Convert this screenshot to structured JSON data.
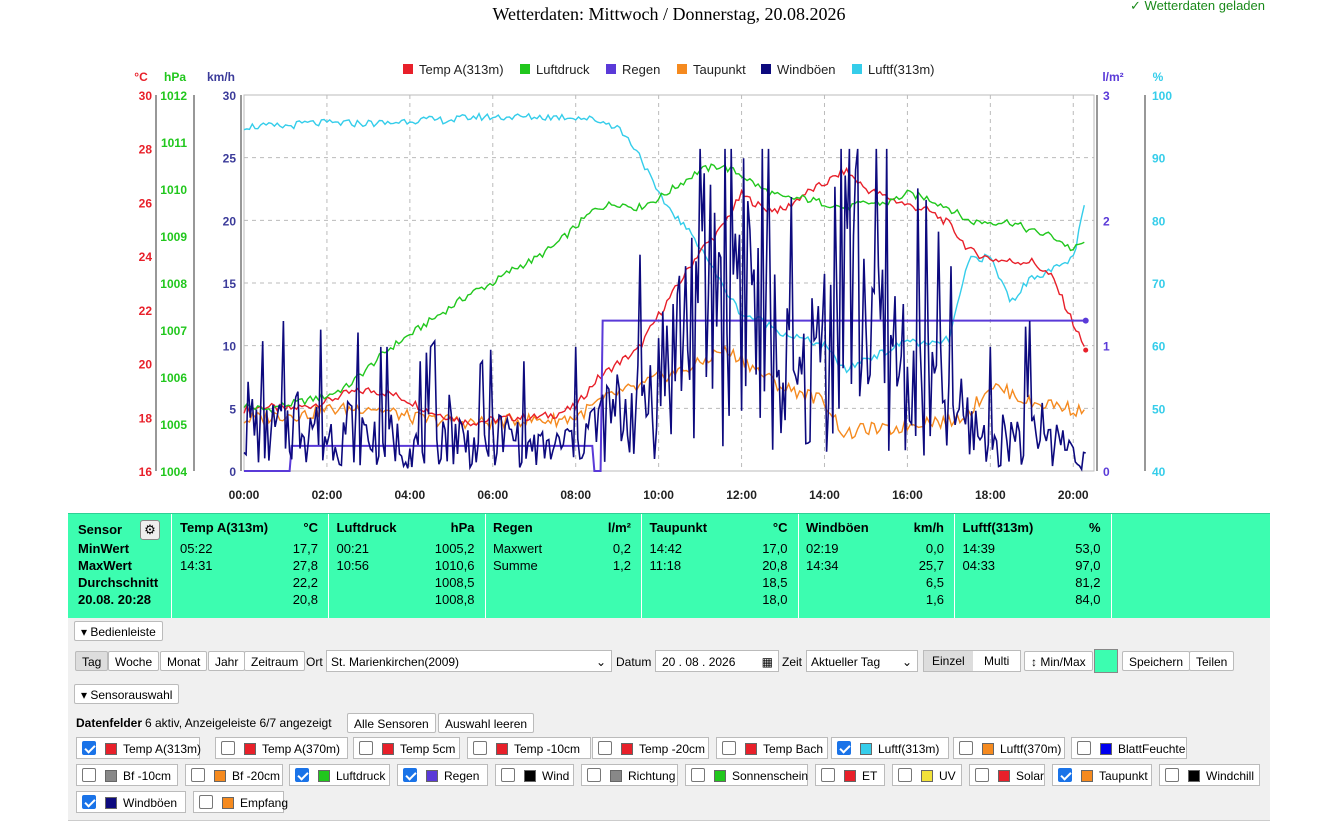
{
  "title": "Wetterdaten: Mittwoch / Donnerstag, 20.08.2026",
  "status": "✓ Wetterdaten geladen",
  "chart_data": {
    "type": "line",
    "legend": [
      "Temp A(313m)",
      "Luftdruck",
      "Regen",
      "Taupunkt",
      "Windböen",
      "Luftf(313m)"
    ],
    "legend_colors": [
      "#e8202a",
      "#21c71d",
      "#5a3ad8",
      "#f58a1f",
      "#0d0a7e",
      "#35cdea"
    ],
    "axes": {
      "temp": {
        "unit": "°C",
        "min": 16,
        "max": 30,
        "ticks": [
          "30",
          "28",
          "26",
          "24",
          "22",
          "20",
          "18",
          "16"
        ],
        "color": "#e8202a"
      },
      "pressure": {
        "unit": "hPa",
        "min": 1004,
        "max": 1012,
        "ticks": [
          "1012",
          "1011",
          "1010",
          "1009",
          "1008",
          "1007",
          "1006",
          "1005",
          "1004"
        ],
        "color": "#21c71d"
      },
      "wind": {
        "unit": "km/h",
        "min": 0,
        "max": 30,
        "ticks": [
          "30",
          "25",
          "20",
          "15",
          "10",
          "5",
          "0"
        ],
        "color": "#3b3b9a"
      },
      "rain": {
        "unit": "l/m²",
        "min": 0,
        "max": 3,
        "ticks": [
          "3",
          "2",
          "1",
          "0"
        ],
        "color": "#5a3ad8"
      },
      "humidity": {
        "unit": "%",
        "min": 40,
        "max": 100,
        "ticks": [
          "100",
          "90",
          "80",
          "70",
          "60",
          "50",
          "40"
        ],
        "color": "#35cdea"
      }
    },
    "x_ticks": [
      "00:00",
      "02:00",
      "04:00",
      "06:00",
      "08:00",
      "10:00",
      "12:00",
      "14:00",
      "16:00",
      "18:00",
      "20:00"
    ],
    "series": [
      {
        "name": "Temp A(313m)",
        "axis": "temp",
        "color": "#e8202a",
        "x": [
          0,
          0.5,
          1,
          1.5,
          2,
          2.5,
          3,
          3.5,
          4,
          4.5,
          5,
          5.37,
          6,
          6.5,
          7,
          7.5,
          8,
          8.5,
          9,
          9.5,
          10,
          10.5,
          11,
          11.5,
          12,
          12.5,
          13,
          13.5,
          14,
          14.5,
          15,
          15.5,
          16,
          16.5,
          17,
          17.5,
          18,
          18.5,
          19,
          19.5,
          20,
          20.3
        ],
        "y": [
          18.3,
          18.4,
          18.3,
          18.4,
          18.6,
          18.9,
          19.0,
          18.9,
          18.6,
          18.2,
          18.0,
          17.8,
          17.9,
          18.0,
          18.0,
          18.1,
          18.4,
          19.4,
          20.0,
          20.5,
          21.8,
          23.0,
          24.2,
          25.0,
          26.3,
          25.8,
          25.7,
          26.3,
          26.7,
          27.2,
          26.5,
          26.2,
          25.9,
          25.7,
          25.2,
          24.2,
          23.9,
          23.8,
          23.8,
          23.2,
          21.5,
          20.5
        ]
      },
      {
        "name": "Luftdruck",
        "axis": "pressure",
        "color": "#21c71d",
        "x": [
          0,
          0.5,
          1,
          1.5,
          2,
          2.5,
          3,
          3.5,
          4,
          4.5,
          5,
          5.5,
          6,
          6.5,
          7,
          7.5,
          8,
          8.5,
          9,
          9.5,
          10,
          10.5,
          11,
          11.5,
          12,
          12.5,
          13,
          13.5,
          14,
          14.5,
          15,
          15.5,
          16,
          16.5,
          17,
          17.5,
          18,
          18.5,
          19,
          19.5,
          20,
          20.3
        ],
        "y": [
          1005.4,
          1005.3,
          1005.4,
          1005.5,
          1005.6,
          1005.8,
          1006.2,
          1006.6,
          1006.9,
          1007.2,
          1007.5,
          1007.8,
          1008.0,
          1008.3,
          1008.5,
          1008.8,
          1009.2,
          1009.6,
          1009.7,
          1009.6,
          1009.8,
          1010.1,
          1010.4,
          1010.5,
          1010.3,
          1010.0,
          1009.8,
          1009.8,
          1009.7,
          1009.6,
          1009.7,
          1009.7,
          1009.9,
          1009.8,
          1009.6,
          1009.3,
          1009.3,
          1009.3,
          1009.1,
          1009.0,
          1008.7,
          1008.9
        ]
      },
      {
        "name": "Regen",
        "axis": "rain",
        "color": "#5a3ad8",
        "x": [
          0,
          1.1,
          1.15,
          8.4,
          8.45,
          8.6,
          8.65,
          20.3
        ],
        "y": [
          0,
          0,
          0.2,
          0.2,
          0,
          0,
          1.2,
          1.2
        ]
      },
      {
        "name": "Taupunkt",
        "axis": "temp",
        "color": "#f58a1f",
        "x": [
          0,
          0.5,
          1,
          1.5,
          2,
          2.5,
          3,
          3.5,
          4,
          4.5,
          5,
          5.5,
          6,
          6.5,
          7,
          7.5,
          8,
          8.5,
          9,
          9.5,
          10,
          10.5,
          11,
          11.5,
          12,
          12.5,
          13,
          13.5,
          14,
          14.5,
          15,
          15.5,
          16,
          16.5,
          17,
          17.5,
          18,
          18.5,
          19,
          19.5,
          20,
          20.3
        ],
        "y": [
          17.9,
          18.0,
          18.1,
          18.1,
          18.3,
          18.3,
          18.4,
          18.2,
          18.0,
          17.9,
          17.9,
          17.8,
          17.8,
          17.9,
          17.9,
          17.9,
          18.0,
          18.5,
          18.9,
          19.1,
          19.5,
          19.7,
          20.0,
          20.5,
          20.2,
          19.6,
          19.1,
          18.9,
          18.6,
          17.3,
          17.6,
          17.5,
          17.7,
          17.9,
          17.8,
          18.2,
          19.2,
          18.9,
          18.5,
          18.5,
          18.3,
          18.2
        ]
      },
      {
        "name": "Windböen",
        "axis": "wind",
        "color": "#0d0a7e",
        "x": [
          0,
          0.5,
          1,
          1.5,
          2,
          2.5,
          3,
          3.5,
          4,
          4.5,
          5,
          5.5,
          6,
          6.5,
          7,
          7.5,
          8,
          8.5,
          9,
          9.5,
          10,
          10.5,
          11,
          11.5,
          12,
          12.5,
          13,
          13.5,
          14,
          14.5,
          15,
          15.5,
          16,
          16.5,
          17,
          17.5,
          18,
          18.5,
          19,
          19.5,
          20,
          20.3
        ],
        "y": [
          5,
          3,
          4,
          5,
          3,
          4,
          3,
          3,
          2,
          3,
          4,
          2,
          3,
          3,
          2,
          2,
          3,
          4,
          5,
          6,
          8,
          12,
          15,
          18,
          20,
          12,
          9,
          7,
          12,
          22,
          15,
          11,
          9,
          8,
          6,
          4,
          3,
          3,
          4,
          3,
          2,
          1
        ]
      },
      {
        "name": "Luftf(313m)",
        "axis": "humidity",
        "color": "#35cdea",
        "x": [
          0,
          0.5,
          1,
          1.5,
          2,
          2.5,
          3,
          3.5,
          4,
          4.5,
          5,
          5.5,
          6,
          6.5,
          7,
          7.5,
          8,
          8.5,
          9,
          9.5,
          10,
          10.5,
          11,
          11.5,
          12,
          12.5,
          13,
          13.5,
          14,
          14.5,
          15,
          15.5,
          16,
          16.5,
          17,
          17.5,
          18,
          18.5,
          19,
          19.5,
          20,
          20.3
        ],
        "y": [
          95,
          95,
          95,
          95.5,
          95.5,
          95.5,
          95.5,
          95.5,
          96,
          96,
          96,
          96.5,
          96.5,
          96.5,
          96.5,
          96.5,
          96.5,
          96,
          95,
          91,
          84,
          80,
          76,
          70,
          65,
          64,
          62,
          61,
          60,
          56,
          58,
          59,
          61,
          60,
          61,
          74,
          74,
          67,
          71,
          72,
          74,
          83
        ]
      }
    ]
  },
  "stats": {
    "sensor_label": "Sensor",
    "rows": [
      "MinWert",
      "MaxWert",
      "Durchschnitt",
      "20.08. 20:28"
    ],
    "cols": [
      {
        "name": "Temp A(313m)",
        "unit": "°C",
        "r1": [
          "05:22",
          "17,7"
        ],
        "r2": [
          "14:31",
          "27,8"
        ],
        "r3": [
          "",
          "22,2"
        ],
        "r4": [
          "",
          "20,8"
        ]
      },
      {
        "name": "Luftdruck",
        "unit": "hPa",
        "r1": [
          "00:21",
          "1005,2"
        ],
        "r2": [
          "10:56",
          "1010,6"
        ],
        "r3": [
          "",
          "1008,5"
        ],
        "r4": [
          "",
          "1008,8"
        ]
      },
      {
        "name": "Regen",
        "unit": "l/m²",
        "r1": [
          "Maxwert",
          "0,2"
        ],
        "r2": [
          "Summe",
          "1,2"
        ],
        "r3": [
          "",
          ""
        ],
        "r4": [
          "",
          ""
        ]
      },
      {
        "name": "Taupunkt",
        "unit": "°C",
        "r1": [
          "14:42",
          "17,0"
        ],
        "r2": [
          "11:18",
          "20,8"
        ],
        "r3": [
          "",
          "18,5"
        ],
        "r4": [
          "",
          "18,0"
        ]
      },
      {
        "name": "Windböen",
        "unit": "km/h",
        "r1": [
          "02:19",
          "0,0"
        ],
        "r2": [
          "14:34",
          "25,7"
        ],
        "r3": [
          "",
          "6,5"
        ],
        "r4": [
          "",
          "1,6"
        ]
      },
      {
        "name": "Luftf(313m)",
        "unit": "%",
        "r1": [
          "14:39",
          "53,0"
        ],
        "r2": [
          "04:33",
          "97,0"
        ],
        "r3": [
          "",
          "81,2"
        ],
        "r4": [
          "",
          "84,0"
        ]
      }
    ]
  },
  "toolbar": {
    "bedienleiste": "Bedienleiste",
    "tag": "Tag",
    "woche": "Woche",
    "monat": "Monat",
    "jahr": "Jahr",
    "zeitraum": "Zeitraum",
    "ort_label": "Ort",
    "ort_value": "St. Marienkirchen(2009)",
    "datum_label": "Datum",
    "datum_value": "20 . 08 . 2026",
    "zeit_label": "Zeit",
    "zeit_value": "Aktueller Tag",
    "einzel": "Einzel",
    "multi": "Multi",
    "minmax": "↕ Min/Max",
    "color_accent": "#3cfdb0",
    "speichern": "Speichern",
    "teilen": "Teilen"
  },
  "sensors": {
    "header": "Sensorauswahl",
    "datenfelder_label": "Datenfelder",
    "datenfelder_info": "6 aktiv, Anzeigeleiste 6/7 angezeigt",
    "alle": "Alle Sensoren",
    "leeren": "Auswahl leeren",
    "items": [
      {
        "label": "Temp A(313m)",
        "color": "#e8202a",
        "checked": true
      },
      {
        "label": "Temp A(370m)",
        "color": "#e8202a",
        "checked": false
      },
      {
        "label": "Temp 5cm",
        "color": "#e8202a",
        "checked": false
      },
      {
        "label": "Temp -10cm",
        "color": "#e8202a",
        "checked": false
      },
      {
        "label": "Temp -20cm",
        "color": "#e8202a",
        "checked": false
      },
      {
        "label": "Temp Bach",
        "color": "#e8202a",
        "checked": false
      },
      {
        "label": "Luftf(313m)",
        "color": "#35cdea",
        "checked": true
      },
      {
        "label": "Luftf(370m)",
        "color": "#f58a1f",
        "checked": false
      },
      {
        "label": "BlattFeuchte",
        "color": "#0000ee",
        "checked": false
      },
      {
        "label": "Bf -10cm",
        "color": "#888888",
        "checked": false
      },
      {
        "label": "Bf -20cm",
        "color": "#f58a1f",
        "checked": false
      },
      {
        "label": "Luftdruck",
        "color": "#21c71d",
        "checked": true
      },
      {
        "label": "Regen",
        "color": "#5a3ad8",
        "checked": true
      },
      {
        "label": "Wind",
        "color": "#000000",
        "checked": false
      },
      {
        "label": "Richtung",
        "color": "#888888",
        "checked": false
      },
      {
        "label": "Sonnenschein",
        "color": "#21c71d",
        "checked": false
      },
      {
        "label": "ET",
        "color": "#e8202a",
        "checked": false
      },
      {
        "label": "UV",
        "color": "#f2e23a",
        "checked": false
      },
      {
        "label": "Solar",
        "color": "#e8202a",
        "checked": false
      },
      {
        "label": "Taupunkt",
        "color": "#f58a1f",
        "checked": true
      },
      {
        "label": "Windchill",
        "color": "#000000",
        "checked": false
      },
      {
        "label": "Windböen",
        "color": "#0d0a7e",
        "checked": true
      },
      {
        "label": "Empfang",
        "color": "#f58a1f",
        "checked": false
      }
    ]
  }
}
